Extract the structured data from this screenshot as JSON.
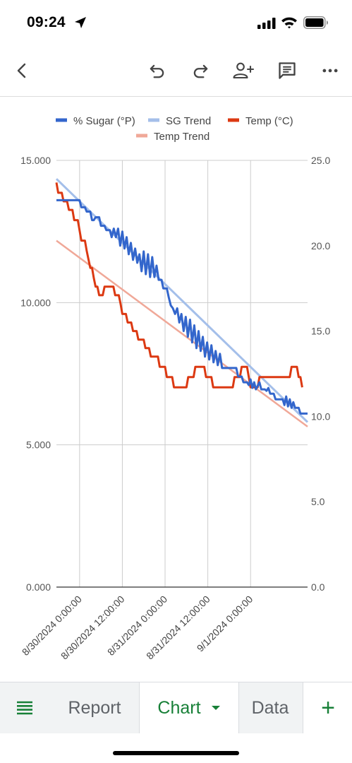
{
  "status": {
    "time": "09:24"
  },
  "toolbar": {
    "icons": [
      "back-arrow-icon",
      "undo-icon",
      "redo-icon",
      "add-person-icon",
      "comment-icon",
      "more-vert-icon"
    ]
  },
  "tabs": {
    "menu_icon": "sheet-list-icon",
    "report": "Report",
    "chart": "Chart",
    "data": "Data",
    "add": "+"
  },
  "colors": {
    "sugar": "#3366cc",
    "sg_trend": "#a4bfea",
    "temp": "#dc3912",
    "temp_trend": "#f0a898",
    "active_tab": "#188038"
  },
  "chart_data": {
    "type": "line",
    "legend_position": "top",
    "grid": true,
    "x_ticks": [
      "8/30/2024 0:00:00",
      "8/30/2024 12:00:00",
      "8/31/2024 0:00:00",
      "8/31/2024 12:00:00",
      "9/1/2024 0:00:00"
    ],
    "y_left": {
      "ticks": [
        "0.000",
        "5.000",
        "10.000",
        "15.000"
      ],
      "range": [
        0,
        15
      ]
    },
    "y_right": {
      "ticks": [
        "0.0",
        "5.0",
        "10.0",
        "15.0",
        "20.0",
        "25.0"
      ],
      "range": [
        0,
        25
      ]
    },
    "x_range_hours": [
      -6.5,
      64
    ],
    "series": [
      {
        "name": "% Sugar (°P)",
        "axis": "left",
        "points": [
          [
            -6.5,
            13.6
          ],
          [
            -2.5,
            13.6
          ],
          [
            0,
            13.6
          ],
          [
            0.5,
            13.35
          ],
          [
            1.5,
            13.35
          ],
          [
            2,
            13.2
          ],
          [
            3,
            13.2
          ],
          [
            3.5,
            12.9
          ],
          [
            4,
            12.9
          ],
          [
            4.5,
            13.0
          ],
          [
            5.5,
            13.0
          ],
          [
            6,
            12.7
          ],
          [
            7,
            12.7
          ],
          [
            7.5,
            12.55
          ],
          [
            8.5,
            12.55
          ],
          [
            9,
            12.3
          ],
          [
            9.6,
            12.6
          ],
          [
            10.2,
            12.3
          ],
          [
            10.8,
            12.6
          ],
          [
            11.4,
            12.0
          ],
          [
            12,
            12.5
          ],
          [
            12.6,
            11.9
          ],
          [
            13.2,
            12.3
          ],
          [
            13.8,
            11.7
          ],
          [
            14.4,
            12.1
          ],
          [
            15,
            11.5
          ],
          [
            15.6,
            11.9
          ],
          [
            16.2,
            11.4
          ],
          [
            16.8,
            11.7
          ],
          [
            17.4,
            11.1
          ],
          [
            18,
            11.8
          ],
          [
            18.6,
            11.0
          ],
          [
            19.2,
            11.7
          ],
          [
            19.8,
            10.9
          ],
          [
            20.4,
            11.6
          ],
          [
            21,
            10.9
          ],
          [
            21.6,
            11.3
          ],
          [
            22.2,
            10.8
          ],
          [
            23,
            10.8
          ],
          [
            23.5,
            10.5
          ],
          [
            24.5,
            10.5
          ],
          [
            25,
            10.2
          ],
          [
            25.6,
            9.9
          ],
          [
            26.2,
            9.8
          ],
          [
            26.8,
            9.6
          ],
          [
            27.4,
            9.8
          ],
          [
            28,
            9.3
          ],
          [
            28.6,
            9.6
          ],
          [
            29.2,
            9.0
          ],
          [
            29.8,
            9.5
          ],
          [
            30.4,
            8.8
          ],
          [
            31,
            9.4
          ],
          [
            31.6,
            8.6
          ],
          [
            32.2,
            9.2
          ],
          [
            32.8,
            8.4
          ],
          [
            33.4,
            9.0
          ],
          [
            34,
            8.3
          ],
          [
            34.6,
            8.8
          ],
          [
            35.2,
            8.1
          ],
          [
            35.8,
            8.6
          ],
          [
            36.4,
            8.0
          ],
          [
            37,
            8.5
          ],
          [
            37.6,
            7.9
          ],
          [
            38.2,
            8.3
          ],
          [
            38.8,
            7.8
          ],
          [
            39.4,
            8.2
          ],
          [
            40,
            7.7
          ],
          [
            41,
            7.7
          ],
          [
            42,
            7.7
          ],
          [
            43,
            7.7
          ],
          [
            44,
            7.7
          ],
          [
            44.5,
            7.4
          ],
          [
            45.5,
            7.4
          ],
          [
            46,
            7.2
          ],
          [
            47,
            7.2
          ],
          [
            47.5,
            7.1
          ],
          [
            48,
            7.3
          ],
          [
            48.5,
            7.0
          ],
          [
            49,
            7.2
          ],
          [
            49.5,
            6.95
          ],
          [
            50.5,
            7.2
          ],
          [
            51,
            6.95
          ],
          [
            52,
            6.95
          ],
          [
            52.5,
            6.9
          ],
          [
            53,
            7.0
          ],
          [
            53.5,
            6.8
          ],
          [
            54.5,
            6.8
          ],
          [
            55,
            6.6
          ],
          [
            56,
            6.6
          ],
          [
            57,
            6.6
          ],
          [
            57.5,
            6.4
          ],
          [
            58,
            6.7
          ],
          [
            58.5,
            6.35
          ],
          [
            59,
            6.6
          ],
          [
            59.5,
            6.3
          ],
          [
            60,
            6.5
          ],
          [
            60.5,
            6.3
          ],
          [
            61.5,
            6.3
          ],
          [
            62,
            6.1
          ],
          [
            63,
            6.1
          ],
          [
            64,
            6.1
          ]
        ]
      },
      {
        "name": "SG Trend",
        "axis": "left",
        "points": [
          [
            -6.5,
            14.35
          ],
          [
            64,
            5.8
          ]
        ]
      },
      {
        "name": "Temp (°C)",
        "axis": "right",
        "points": [
          [
            -6.5,
            23.7
          ],
          [
            -6.0,
            23.1
          ],
          [
            -5.0,
            23.1
          ],
          [
            -4.5,
            22.6
          ],
          [
            -3.5,
            22.6
          ],
          [
            -3.0,
            22.1
          ],
          [
            -2.0,
            22.1
          ],
          [
            -1.5,
            21.5
          ],
          [
            -0.5,
            21.5
          ],
          [
            0,
            20.9
          ],
          [
            0.5,
            20.3
          ],
          [
            1.5,
            20.3
          ],
          [
            2,
            19.7
          ],
          [
            2.5,
            19.2
          ],
          [
            3,
            18.7
          ],
          [
            3.5,
            18.7
          ],
          [
            4,
            18.1
          ],
          [
            4.5,
            17.6
          ],
          [
            5,
            17.6
          ],
          [
            5.5,
            17.1
          ],
          [
            6.5,
            17.1
          ],
          [
            7,
            17.6
          ],
          [
            9.5,
            17.6
          ],
          [
            10,
            17.1
          ],
          [
            11,
            17.1
          ],
          [
            11.5,
            16.6
          ],
          [
            12,
            16.0
          ],
          [
            13,
            16.0
          ],
          [
            13.5,
            15.5
          ],
          [
            14.5,
            15.5
          ],
          [
            15,
            15.0
          ],
          [
            16,
            15.0
          ],
          [
            16.5,
            14.5
          ],
          [
            18,
            14.5
          ],
          [
            18.5,
            14.0
          ],
          [
            19.5,
            14.0
          ],
          [
            20,
            13.5
          ],
          [
            22,
            13.5
          ],
          [
            22.5,
            12.9
          ],
          [
            24,
            12.9
          ],
          [
            24.5,
            12.3
          ],
          [
            26,
            12.3
          ],
          [
            26.5,
            11.7
          ],
          [
            30,
            11.7
          ],
          [
            30.5,
            12.3
          ],
          [
            32,
            12.3
          ],
          [
            32.5,
            12.9
          ],
          [
            35,
            12.9
          ],
          [
            35.5,
            12.3
          ],
          [
            37,
            12.3
          ],
          [
            37.5,
            11.7
          ],
          [
            43,
            11.7
          ],
          [
            43.5,
            12.3
          ],
          [
            45,
            12.3
          ],
          [
            45.5,
            12.9
          ],
          [
            47,
            12.9
          ],
          [
            47.5,
            12.3
          ],
          [
            48,
            11.7
          ],
          [
            50,
            11.7
          ],
          [
            50.5,
            12.3
          ],
          [
            59,
            12.3
          ],
          [
            59.5,
            12.9
          ],
          [
            61,
            12.9
          ],
          [
            61.5,
            12.3
          ],
          [
            62,
            12.3
          ],
          [
            62.5,
            11.7
          ]
        ]
      },
      {
        "name": "Temp Trend",
        "axis": "right",
        "points": [
          [
            -6.5,
            20.3
          ],
          [
            64,
            9.4
          ]
        ]
      }
    ]
  }
}
